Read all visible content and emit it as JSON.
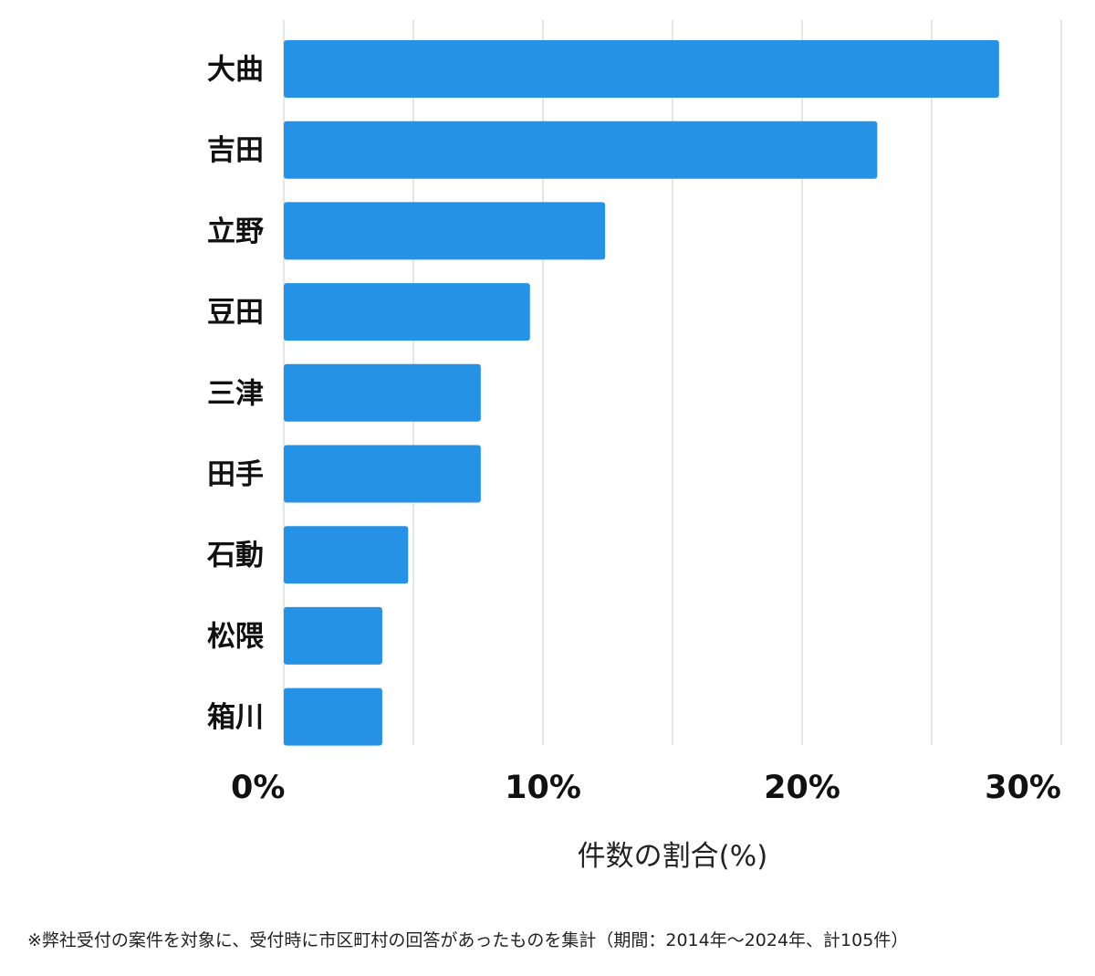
{
  "chart_data": {
    "type": "bar",
    "orientation": "horizontal",
    "categories": [
      "大曲",
      "吉田",
      "立野",
      "豆田",
      "三津",
      "田手",
      "石動",
      "松隈",
      "箱川"
    ],
    "values": [
      27.6,
      22.9,
      12.4,
      9.5,
      7.6,
      7.6,
      4.8,
      3.8,
      3.8
    ],
    "xlabel": "件数の割合(%)",
    "xlim": [
      0,
      30
    ],
    "xticks": [
      {
        "value": 0,
        "label": "0%"
      },
      {
        "value": 10,
        "label": "10%"
      },
      {
        "value": 20,
        "label": "20%"
      },
      {
        "value": 30,
        "label": "30%"
      }
    ],
    "gridlines": [
      0,
      5,
      10,
      15,
      20,
      25,
      30
    ],
    "grid": true,
    "bar_color": "#2592e6",
    "grid_color": "#dddddd"
  },
  "footnote": "※弊社受付の案件を対象に、受付時に市区町村の回答があったものを集計（期間：2014年〜2024年、計105件）"
}
